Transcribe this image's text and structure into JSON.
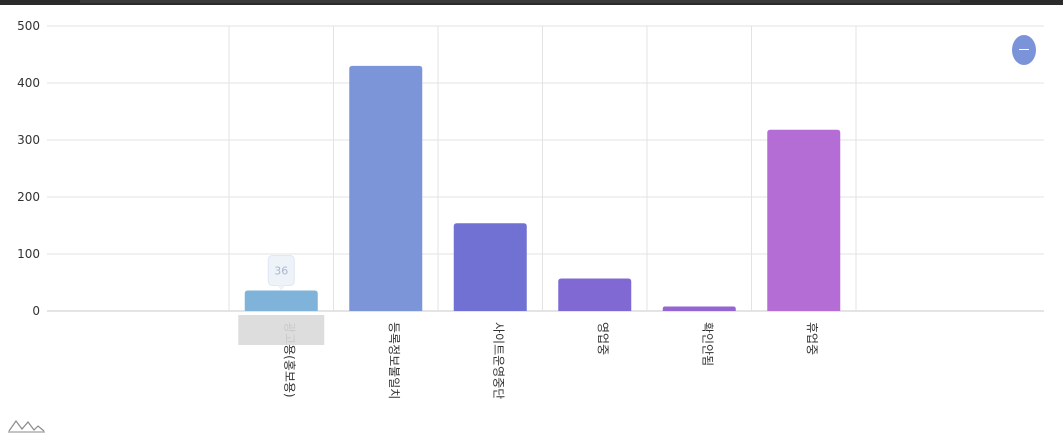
{
  "chart_data": {
    "type": "bar",
    "categories": [
      "광고용(홍보용)",
      "등록정보불일치",
      "사이트운영중단",
      "영업중",
      "확인안됨",
      "휴업중"
    ],
    "values": [
      36,
      430,
      154,
      57,
      8,
      318
    ],
    "colors": [
      "#7fb3d9",
      "#7b95d8",
      "#7171d4",
      "#8169d4",
      "#9466d2",
      "#b46dd4"
    ],
    "ylim": [
      0,
      500
    ],
    "yticks": [
      0,
      100,
      200,
      300,
      400,
      500
    ],
    "tooltip": {
      "category": "광고용(홍보용)",
      "value": "36"
    },
    "grid": true,
    "title": "",
    "xlabel": "",
    "ylabel": ""
  },
  "controls": {
    "collapse_icon": "minus-icon"
  },
  "logo_icon": "chart-logo-icon"
}
